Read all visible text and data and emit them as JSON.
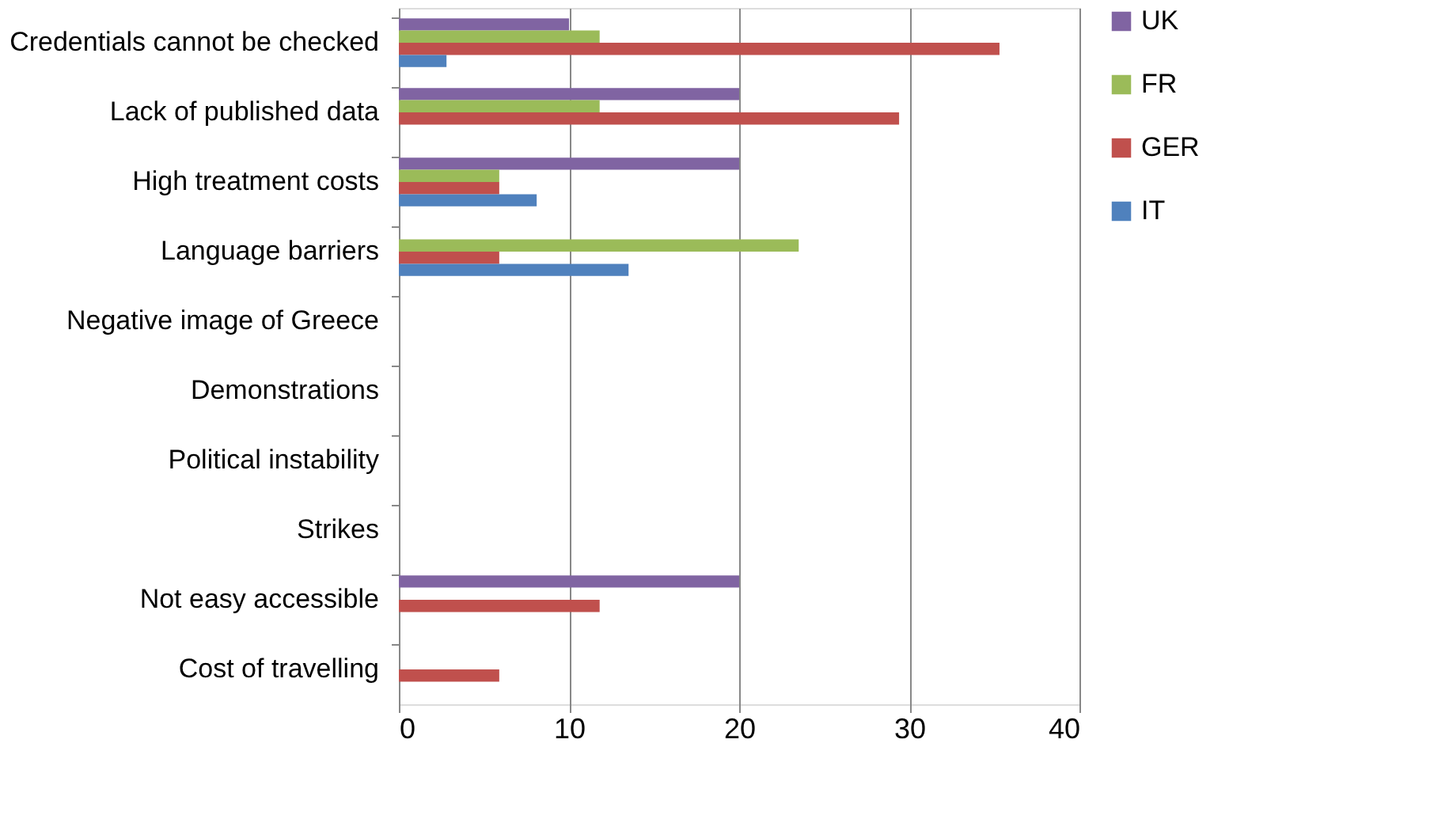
{
  "chart_data": {
    "type": "bar",
    "orientation": "horizontal",
    "categories": [
      "Credentials cannot be checked",
      "Lack of published data",
      "High treatment costs",
      "Language barriers",
      "Negative image of Greece",
      "Demonstrations",
      "Political instability",
      "Strikes",
      "Not easy accessible",
      "Cost of travelling"
    ],
    "series": [
      {
        "name": "UK",
        "color": "#8064a2",
        "values": [
          10,
          20,
          20,
          null,
          null,
          null,
          null,
          null,
          20,
          null
        ]
      },
      {
        "name": "FR",
        "color": "#9bbb59",
        "values": [
          11.8,
          11.8,
          5.9,
          23.5,
          null,
          null,
          null,
          null,
          null,
          null
        ]
      },
      {
        "name": "GER",
        "color": "#c0504d",
        "values": [
          35.3,
          29.4,
          5.9,
          5.9,
          null,
          null,
          null,
          null,
          11.8,
          5.9
        ]
      },
      {
        "name": "IT",
        "color": "#4f81bd",
        "values": [
          2.8,
          null,
          8.1,
          13.5,
          null,
          null,
          null,
          null,
          null,
          null
        ]
      }
    ],
    "xlim": [
      0,
      40
    ],
    "xticks": [
      0,
      10,
      20,
      30,
      40
    ],
    "grid": "x",
    "legend": "right"
  }
}
